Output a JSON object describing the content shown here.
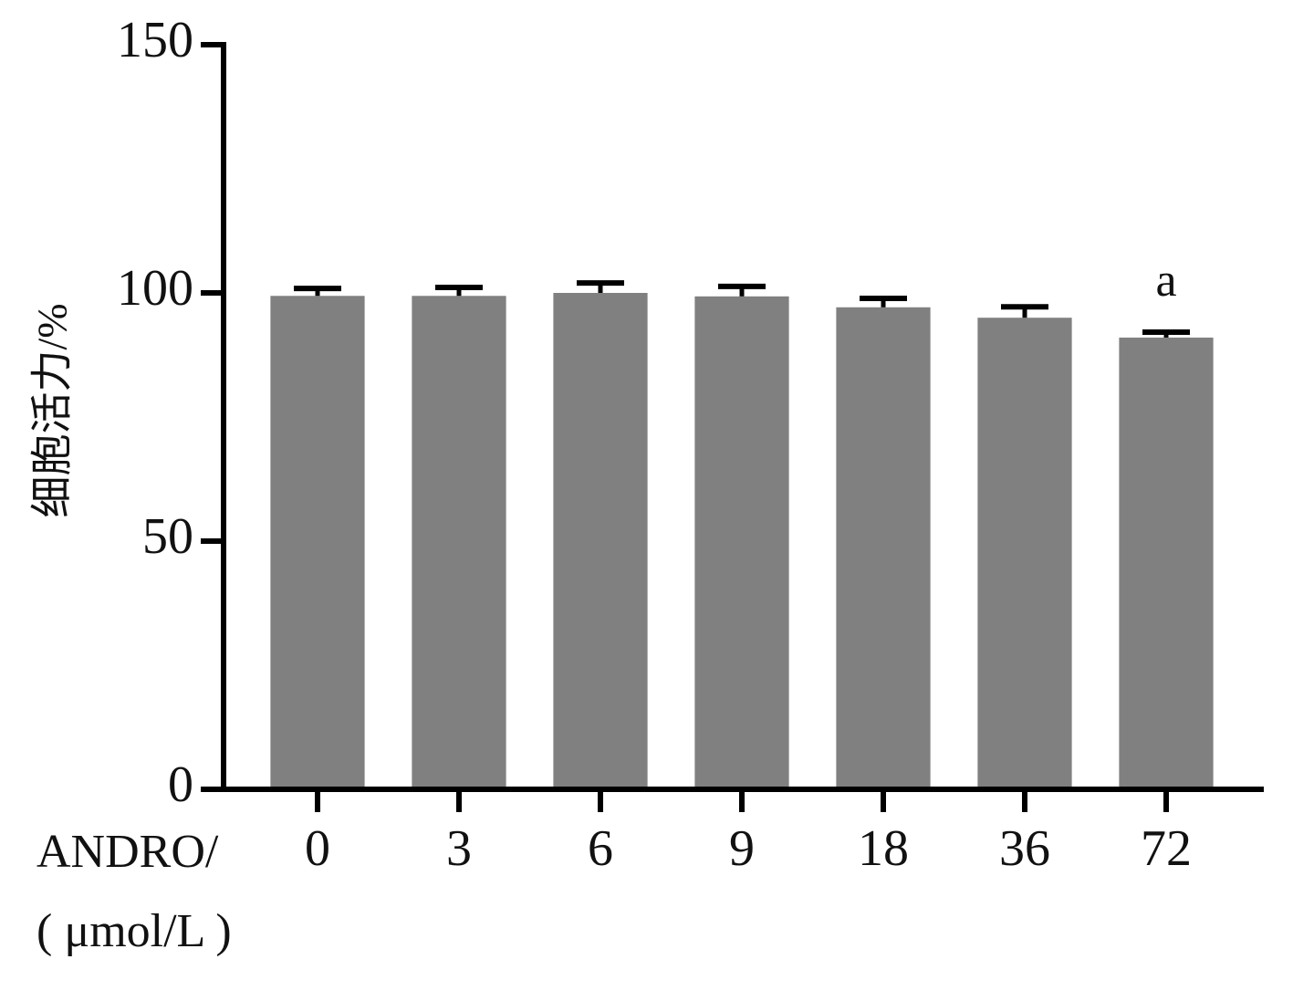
{
  "chart_data": {
    "type": "bar",
    "y_label": "细胞活力/%",
    "x_label": [
      "ANDRO/",
      "( μmol/L )"
    ],
    "categories": [
      "0",
      "3",
      "6",
      "9",
      "18",
      "36",
      "72"
    ],
    "values": [
      99.4,
      99.4,
      100,
      99.3,
      97.1,
      95,
      91
    ],
    "errors": [
      1.5,
      1.7,
      2,
      2,
      1.8,
      2.2,
      1.1
    ],
    "color": "#808080",
    "ylim": [
      0,
      150
    ],
    "yticks": [
      0,
      50,
      100,
      150
    ],
    "grid": false,
    "annotations": [
      {
        "category": "72",
        "text": "a"
      }
    ]
  }
}
